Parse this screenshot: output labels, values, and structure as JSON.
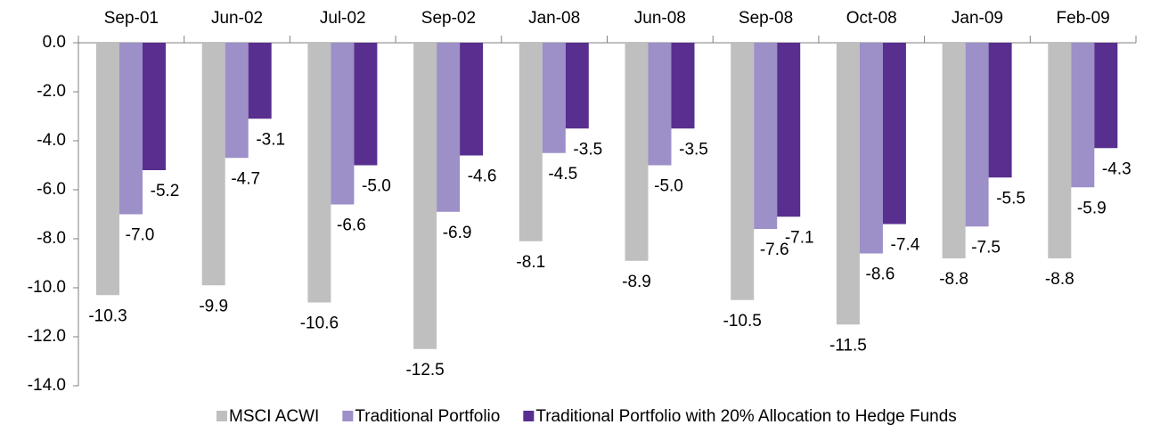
{
  "chart_data": {
    "type": "bar",
    "categories": [
      "Sep-01",
      "Jun-02",
      "Jul-02",
      "Sep-02",
      "Jan-08",
      "Jun-08",
      "Sep-08",
      "Oct-08",
      "Jan-09",
      "Feb-09"
    ],
    "series": [
      {
        "name": "MSCI ACWI",
        "color": "#bfbfbf",
        "values": [
          -10.3,
          -9.9,
          -10.6,
          -12.5,
          -8.1,
          -8.9,
          -10.5,
          -11.5,
          -8.8,
          -8.8
        ],
        "value_labels": [
          "-10.3",
          "-9.9",
          "-10.6",
          "-12.5",
          "-8.1",
          "-8.9",
          "-10.5",
          "-11.5",
          "-8.8",
          "-8.8"
        ]
      },
      {
        "name": "Traditional Portfolio",
        "color": "#9d8fc8",
        "values": [
          -7.0,
          -4.7,
          -6.6,
          -6.9,
          -4.5,
          -5.0,
          -7.6,
          -8.6,
          -7.5,
          -5.9
        ],
        "value_labels": [
          "-7.0",
          "-4.7",
          "-6.6",
          "-6.9",
          "-4.5",
          "-5.0",
          "-7.6",
          "-8.6",
          "-7.5",
          "-5.9"
        ]
      },
      {
        "name": "Traditional Portfolio with 20% Allocation to Hedge Funds",
        "color": "#582f8f",
        "values": [
          -5.2,
          -3.1,
          -5.0,
          -4.6,
          -3.5,
          -3.5,
          -7.1,
          -7.4,
          -5.5,
          -4.3
        ],
        "value_labels": [
          "-5.2",
          "-3.1",
          "-5.0",
          "-4.6",
          "-3.5",
          "-3.5",
          "-7.1",
          "-7.4",
          "-5.5",
          "-4.3"
        ]
      }
    ],
    "ylim": [
      -14,
      0
    ],
    "yticks": [
      {
        "value": 0,
        "label": "0.0"
      },
      {
        "value": -2,
        "label": "-2.0"
      },
      {
        "value": -4,
        "label": "-4.0"
      },
      {
        "value": -6,
        "label": "-6.0"
      },
      {
        "value": -8,
        "label": "-8.0"
      },
      {
        "value": -10,
        "label": "-10.0"
      },
      {
        "value": -12,
        "label": "-12.0"
      },
      {
        "value": -14,
        "label": "-14.0"
      }
    ],
    "legend": "bottom"
  }
}
